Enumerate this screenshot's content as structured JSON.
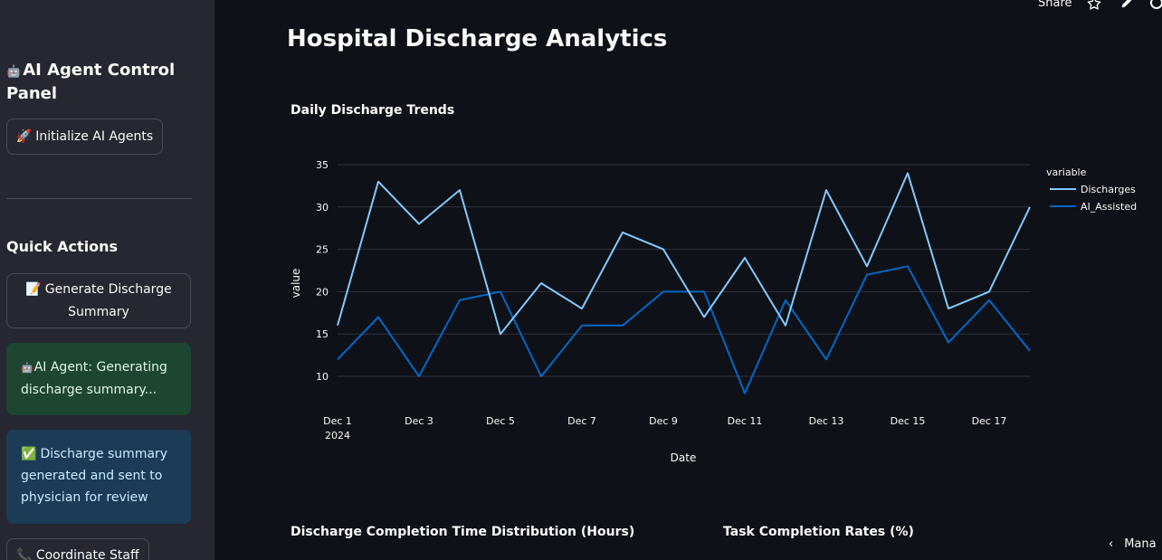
{
  "sidebar": {
    "title_icon": "🤖",
    "title": "AI Agent Control Panel",
    "init_button": {
      "icon": "🚀",
      "label": "Initialize AI Agents"
    },
    "quick_actions_heading": "Quick Actions",
    "generate_button": {
      "icon": "📝",
      "label": "Generate Discharge Summary"
    },
    "alert_info": {
      "icon": "🤖",
      "text": "AI Agent: Generating discharge summary..."
    },
    "alert_success": {
      "icon": "✅",
      "text": "Discharge summary generated and sent to physician for review"
    },
    "coordinate_button": {
      "icon": "📞",
      "label": "Coordinate Staff"
    }
  },
  "toolbar": {
    "share_label": "Share",
    "star_icon": "star-icon",
    "edit_icon": "pencil-icon",
    "github_icon": "github-icon"
  },
  "main": {
    "page_title": "Hospital Discharge Analytics",
    "chart1_title": "Daily Discharge Trends",
    "chart2_title": "Discharge Completion Time Distribution (Hours)",
    "chart3_title": "Task Completion Rates (%)",
    "manage_label": "Mana"
  },
  "colors": {
    "sidebar_bg": "#262730",
    "main_bg": "#0e1117",
    "discharges": "#83c9ff",
    "ai_assisted": "#0068c9"
  },
  "chart_data": {
    "type": "line",
    "title": "Daily Discharge Trends",
    "xlabel": "Date",
    "ylabel": "value",
    "legend_title": "variable",
    "legend_position": "right",
    "x": [
      "2024-12-01",
      "2024-12-02",
      "2024-12-03",
      "2024-12-04",
      "2024-12-05",
      "2024-12-06",
      "2024-12-07",
      "2024-12-08",
      "2024-12-09",
      "2024-12-10",
      "2024-12-11",
      "2024-12-12",
      "2024-12-13",
      "2024-12-14",
      "2024-12-15",
      "2024-12-16",
      "2024-12-17",
      "2024-12-18"
    ],
    "x_ticks": [
      "Dec 1",
      "Dec 3",
      "Dec 5",
      "Dec 7",
      "Dec 9",
      "Dec 11",
      "Dec 13",
      "Dec 15",
      "Dec 17"
    ],
    "x_tick_year": "2024",
    "y_ticks": [
      10,
      15,
      20,
      25,
      30,
      35
    ],
    "ylim": [
      10,
      35
    ],
    "grid": true,
    "series": [
      {
        "name": "Discharges",
        "values": [
          16,
          33,
          28,
          32,
          15,
          21,
          18,
          27,
          25,
          17,
          24,
          16,
          32,
          23,
          34,
          18,
          20,
          30
        ]
      },
      {
        "name": "AI_Assisted",
        "values": [
          12,
          17,
          10,
          19,
          20,
          10,
          16,
          16,
          20,
          20,
          8,
          19,
          12,
          22,
          23,
          14,
          19,
          13
        ]
      }
    ]
  }
}
